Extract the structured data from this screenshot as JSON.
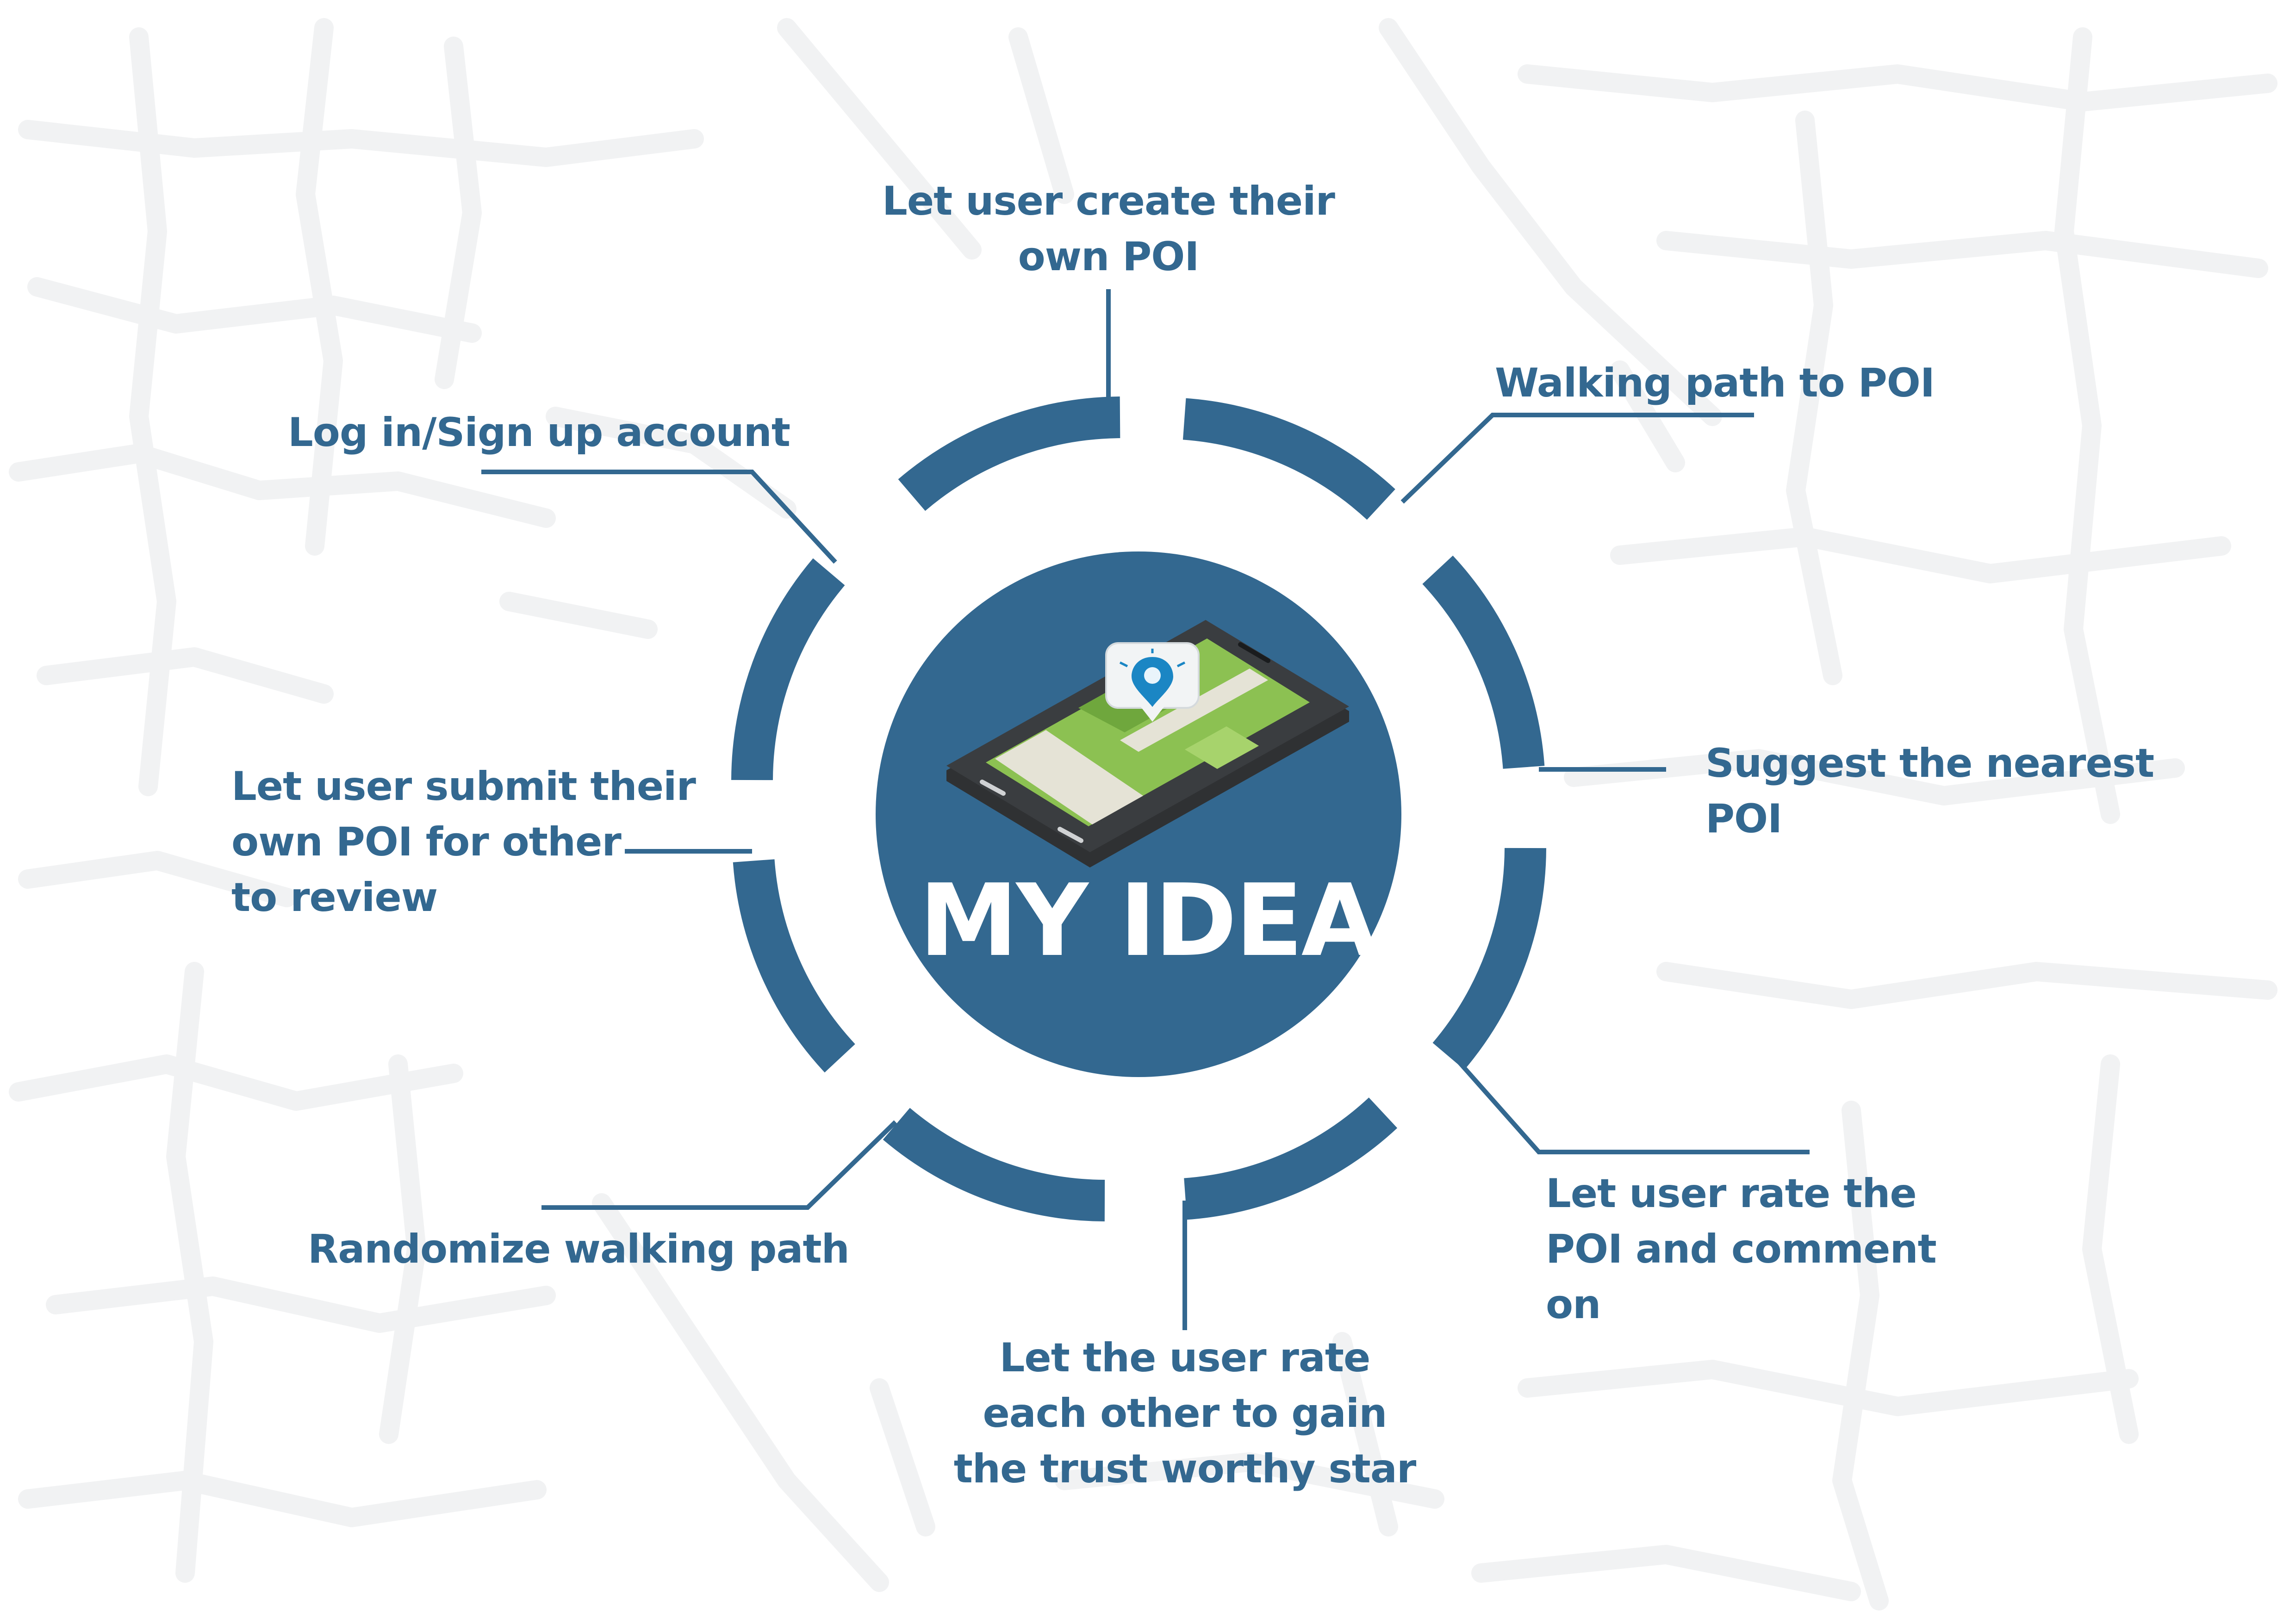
{
  "center": {
    "title": "MY IDEA"
  },
  "colors": {
    "primary": "#336890",
    "background": "#ffffff",
    "map_roads": "#f1f2f3",
    "phone_body": "#2f3133",
    "screen_green": "#8cc152"
  },
  "icons": [
    "smartphone-map-icon",
    "lightbulb-location-pin-icon"
  ],
  "ideas": [
    {
      "id": "create-poi",
      "lines": [
        "Let user create their",
        "own POI"
      ]
    },
    {
      "id": "walking-path",
      "lines": [
        "Walking path to POI"
      ]
    },
    {
      "id": "nearest-poi",
      "lines": [
        "Suggest the nearest",
        "POI"
      ]
    },
    {
      "id": "rate-poi",
      "lines": [
        "Let user rate the",
        "POI and comment",
        "on"
      ]
    },
    {
      "id": "rate-users",
      "lines": [
        "Let the user rate",
        "each other to gain",
        "the trust worthy star"
      ]
    },
    {
      "id": "random-path",
      "lines": [
        "Randomize walking path"
      ]
    },
    {
      "id": "submit-poi",
      "lines": [
        "Let user submit their",
        "own POI for other",
        "to review"
      ]
    },
    {
      "id": "login",
      "lines": [
        "Log in/Sign up account"
      ]
    }
  ]
}
